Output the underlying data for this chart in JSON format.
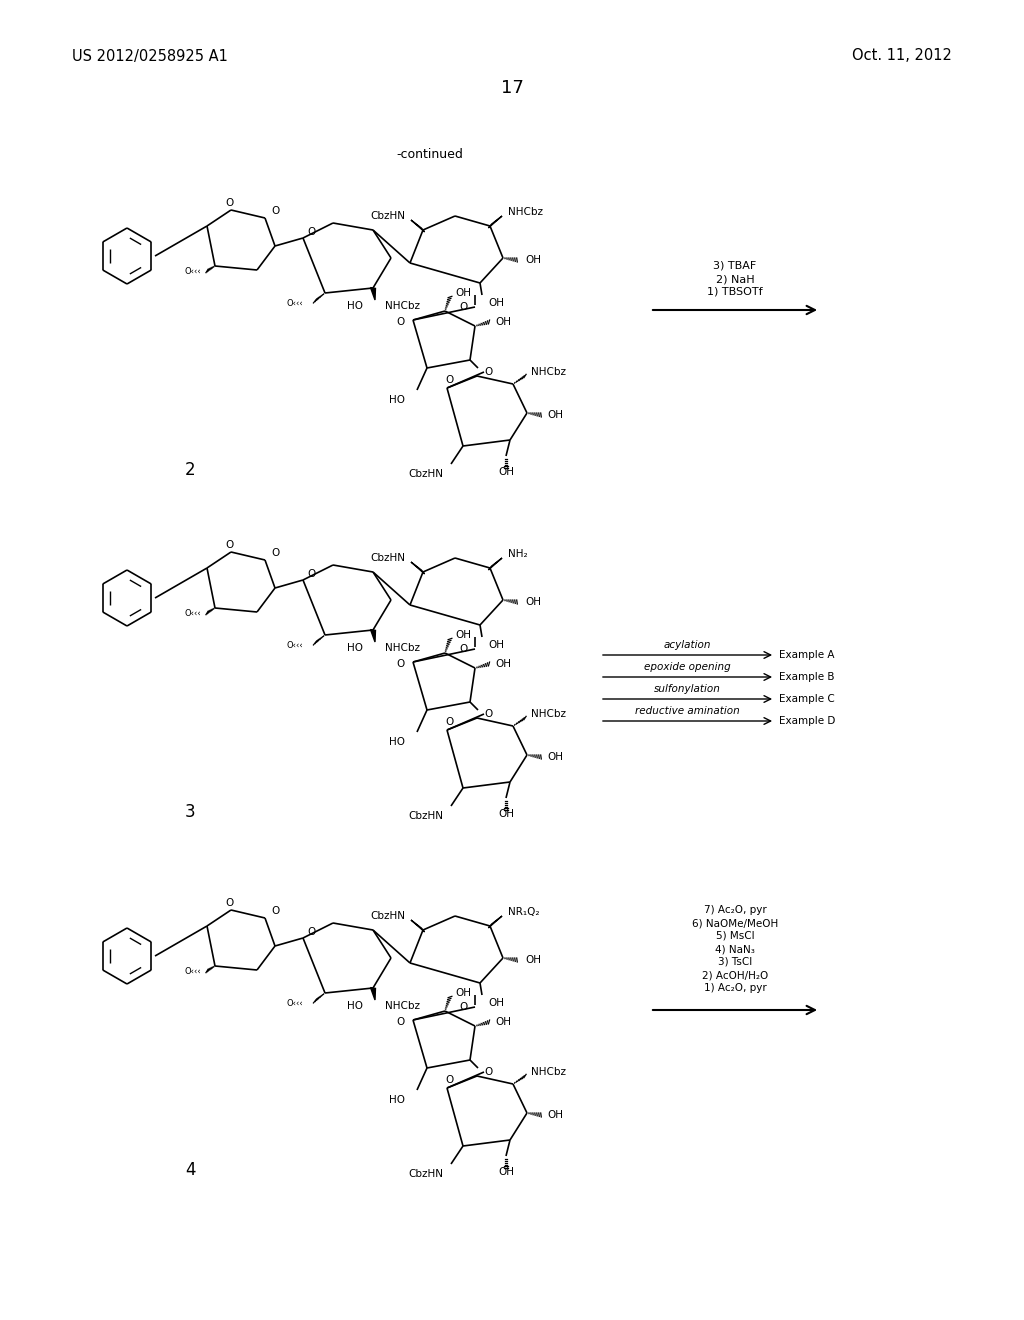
{
  "page_header_left": "US 2012/0258925 A1",
  "page_header_right": "Oct. 11, 2012",
  "page_number": "17",
  "bg": "#ffffff",
  "tc": "#000000",
  "continued_label": "-continued",
  "compound_labels": [
    "2",
    "3",
    "4"
  ],
  "sec1_reagents": [
    "1) TBSOTf",
    "2) NaH",
    "3) TBAF"
  ],
  "sec2_reactions": [
    "acylation",
    "epoxide opening",
    "sulfonylation",
    "reductive amination"
  ],
  "sec2_examples": [
    "Example A",
    "Example B",
    "Example C",
    "Example D"
  ],
  "sec3_reagents": [
    "1) Ac₂O, pyr",
    "2) AcOH/H₂O",
    "3) TsCl",
    "4) NaN₃",
    "5) MsCl",
    "6) NaOMe/MeOH",
    "7) Ac₂O, pyr"
  ]
}
